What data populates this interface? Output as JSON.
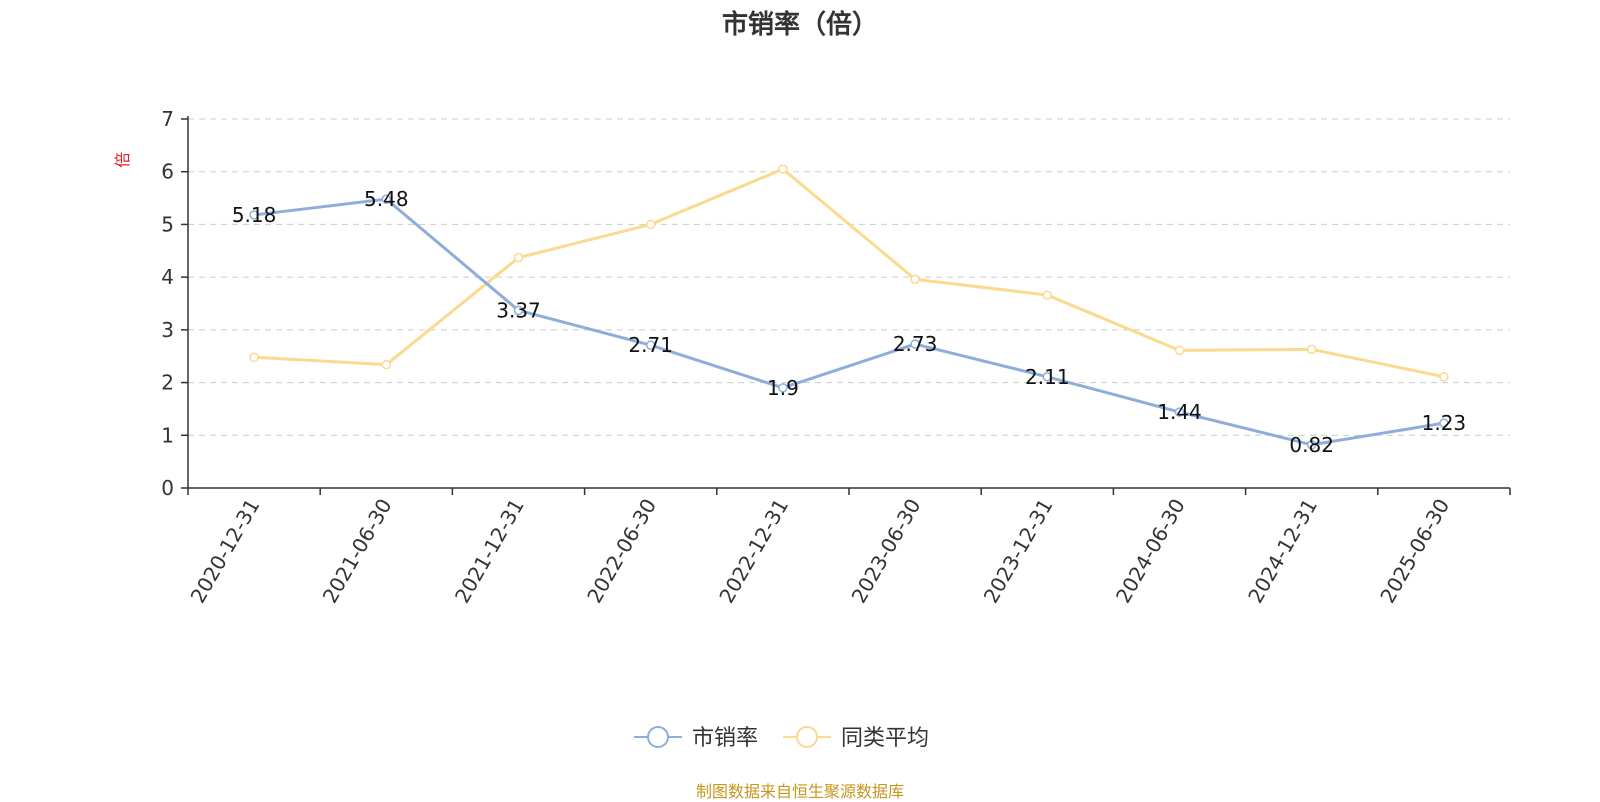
{
  "title": "市销率（倍）",
  "source": "制图数据来自恒生聚源数据库",
  "chart_data": {
    "type": "line",
    "ylabel": "倍",
    "ylim": [
      0,
      7
    ],
    "yticks": [
      0,
      1,
      2,
      3,
      4,
      5,
      6,
      7
    ],
    "grid": true,
    "legend_position": "bottom",
    "categories": [
      "2020-12-31",
      "2021-06-30",
      "2021-12-31",
      "2022-06-30",
      "2022-12-31",
      "2023-06-30",
      "2023-12-31",
      "2024-06-30",
      "2024-12-31",
      "2025-06-30"
    ],
    "series": [
      {
        "name": "市销率",
        "color": "#8eaed9",
        "show_labels": true,
        "values": [
          5.18,
          5.48,
          3.37,
          2.71,
          1.9,
          2.73,
          2.11,
          1.44,
          0.82,
          1.23
        ]
      },
      {
        "name": "同类平均",
        "color": "#fbd98f",
        "show_labels": false,
        "values": [
          2.48,
          2.34,
          4.37,
          5.0,
          6.05,
          3.96,
          3.66,
          2.61,
          2.63,
          2.11
        ]
      }
    ]
  },
  "colors": {
    "unit_label": "#e02020",
    "grid": "#cccccc",
    "axis": "#333333"
  }
}
